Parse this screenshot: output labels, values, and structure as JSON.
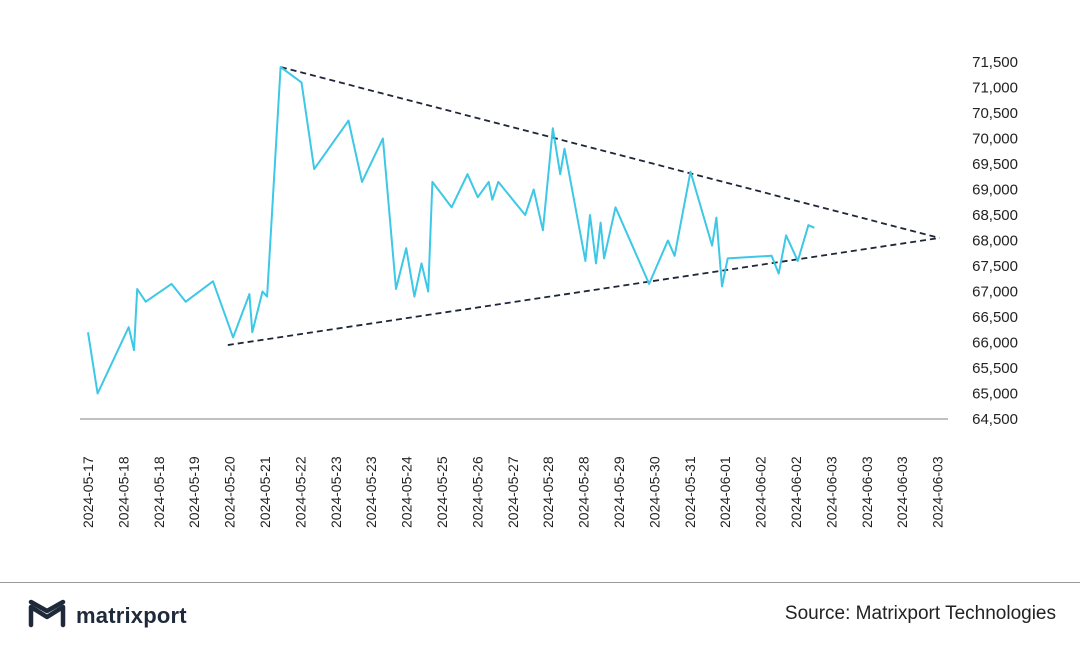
{
  "chart_data": {
    "type": "line",
    "y_axis": {
      "position": "right",
      "ylim": [
        64500,
        71500
      ],
      "ticks": [
        "64,500",
        "65,000",
        "65,500",
        "66,000",
        "66,500",
        "67,000",
        "67,500",
        "68,000",
        "68,500",
        "69,000",
        "69,500",
        "70,000",
        "70,500",
        "71,000",
        "71,500"
      ],
      "tick_values": [
        64500,
        65000,
        65500,
        66000,
        66500,
        67000,
        67500,
        68000,
        68500,
        69000,
        69500,
        70000,
        70500,
        71000,
        71500
      ]
    },
    "x_axis": {
      "labels": [
        "2024-05-17",
        "2024-05-18",
        "2024-05-18",
        "2024-05-19",
        "2024-05-20",
        "2024-05-21",
        "2024-05-22",
        "2024-05-23",
        "2024-05-23",
        "2024-05-24",
        "2024-05-25",
        "2024-05-26",
        "2024-05-27",
        "2024-05-28",
        "2024-05-28",
        "2024-05-29",
        "2024-05-30",
        "2024-05-31",
        "2024-06-01",
        "2024-06-02",
        "2024-06-02",
        "2024-06-03",
        "2024-06-03",
        "2024-06-03",
        "2024-06-03"
      ],
      "label_rotation": "vertical"
    },
    "series": [
      {
        "color": "#3cc8e6",
        "points": [
          [
            0.0,
            66200
          ],
          [
            0.27,
            65000
          ],
          [
            1.15,
            66300
          ],
          [
            1.3,
            65850
          ],
          [
            1.39,
            67050
          ],
          [
            1.63,
            66800
          ],
          [
            2.36,
            67150
          ],
          [
            2.76,
            66800
          ],
          [
            3.53,
            67200
          ],
          [
            4.1,
            66100
          ],
          [
            4.56,
            66950
          ],
          [
            4.64,
            66200
          ],
          [
            4.93,
            67000
          ],
          [
            5.06,
            66900
          ],
          [
            5.44,
            71400
          ],
          [
            6.03,
            71100
          ],
          [
            6.39,
            69400
          ],
          [
            7.36,
            70350
          ],
          [
            7.74,
            69150
          ],
          [
            8.33,
            70000
          ],
          [
            8.7,
            67050
          ],
          [
            8.99,
            67850
          ],
          [
            9.22,
            66900
          ],
          [
            9.42,
            67550
          ],
          [
            9.61,
            67000
          ],
          [
            9.73,
            69150
          ],
          [
            10.27,
            68650
          ],
          [
            10.72,
            69300
          ],
          [
            11.01,
            68850
          ],
          [
            11.32,
            69150
          ],
          [
            11.42,
            68800
          ],
          [
            11.59,
            69150
          ],
          [
            12.35,
            68500
          ],
          [
            12.59,
            69000
          ],
          [
            12.85,
            68200
          ],
          [
            13.13,
            70200
          ],
          [
            13.34,
            69300
          ],
          [
            13.46,
            69800
          ],
          [
            14.05,
            67600
          ],
          [
            14.18,
            68500
          ],
          [
            14.35,
            67550
          ],
          [
            14.48,
            68350
          ],
          [
            14.58,
            67650
          ],
          [
            14.9,
            68650
          ],
          [
            15.85,
            67150
          ],
          [
            16.38,
            68000
          ],
          [
            16.57,
            67700
          ],
          [
            17.02,
            69350
          ],
          [
            17.63,
            67900
          ],
          [
            17.75,
            68450
          ],
          [
            17.91,
            67100
          ],
          [
            18.07,
            67650
          ],
          [
            19.31,
            67700
          ],
          [
            19.51,
            67350
          ],
          [
            19.72,
            68100
          ],
          [
            20.05,
            67600
          ],
          [
            20.35,
            68300
          ],
          [
            20.52,
            68250
          ]
        ]
      }
    ],
    "trendlines": [
      {
        "style": "dashed",
        "color": "#1e2638",
        "start": [
          5.45,
          71400
        ],
        "end": [
          24.05,
          68050
        ]
      },
      {
        "style": "dashed",
        "color": "#1e2638",
        "start": [
          3.95,
          65950
        ],
        "end": [
          24.05,
          68050
        ]
      }
    ]
  },
  "footer": {
    "brand_name": "matrixport",
    "source": "Source: Matrixport Technologies",
    "logo_icon": "matrixport-logo-icon"
  }
}
